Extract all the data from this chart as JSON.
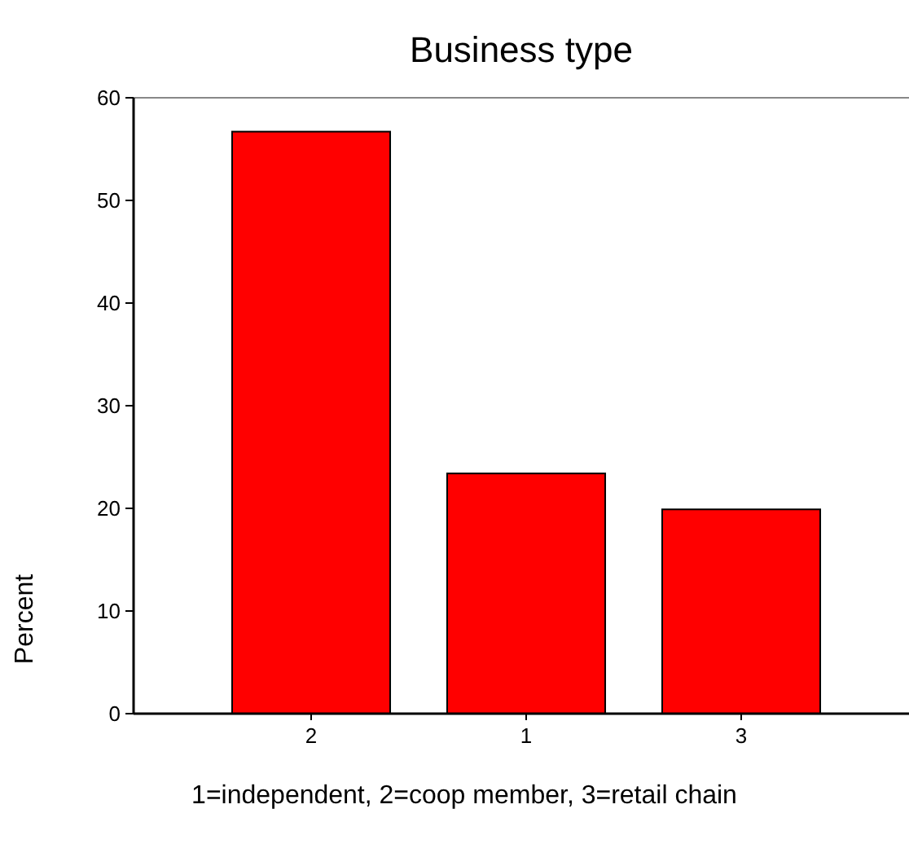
{
  "chart_data": {
    "type": "bar",
    "title": "Business type",
    "ylabel": "Percent",
    "categories": [
      "2",
      "1",
      "3"
    ],
    "values": [
      56.7,
      23.4,
      19.9
    ],
    "color": "#ff0000",
    "ylim": [
      0,
      60
    ],
    "yticks": [
      0,
      10,
      20,
      30,
      40,
      50,
      60
    ],
    "grid": false,
    "annotations": [
      "1=independent, 2=coop member, 3=retail chain"
    ]
  }
}
